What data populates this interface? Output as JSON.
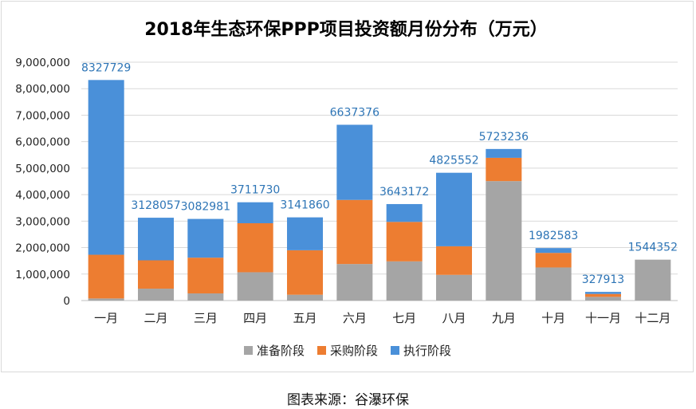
{
  "chart_data": {
    "type": "bar",
    "stacked": true,
    "title": "2018年生态环保PPP项目投资额月份分布（万元）",
    "categories": [
      "一月",
      "二月",
      "三月",
      "四月",
      "五月",
      "六月",
      "七月",
      "八月",
      "九月",
      "十月",
      "十一月",
      "十二月"
    ],
    "series": [
      {
        "name": "准备阶段",
        "color": "#a5a5a5",
        "values": [
          80000,
          450000,
          270000,
          1070000,
          220000,
          1380000,
          1480000,
          970000,
          4510000,
          1250000,
          140000,
          1544352
        ]
      },
      {
        "name": "采购阶段",
        "color": "#ed7d31",
        "values": [
          1650000,
          1070000,
          1350000,
          1850000,
          1680000,
          2420000,
          1490000,
          1080000,
          880000,
          550000,
          110000,
          0
        ]
      },
      {
        "name": "执行阶段",
        "color": "#4a90d9",
        "values": [
          6597729,
          1608057,
          1462981,
          791730,
          1241860,
          2837376,
          673172,
          2775552,
          333236,
          182583,
          77913,
          0
        ]
      }
    ],
    "totals": [
      "8327729",
      "3128057",
      "3082981",
      "3711730",
      "3141860",
      "6637376",
      "3643172",
      "4825552",
      "5723236",
      "1982583",
      "327913",
      "1544352"
    ],
    "y_ticks": [
      "0",
      "1,000,000",
      "2,000,000",
      "3,000,000",
      "4,000,000",
      "5,000,000",
      "6,000,000",
      "7,000,000",
      "8,000,000",
      "9,000,000"
    ],
    "ylim": [
      0,
      9000000
    ],
    "grid": true,
    "legend_position": "bottom"
  },
  "source_text": "图表来源：谷瀑环保"
}
